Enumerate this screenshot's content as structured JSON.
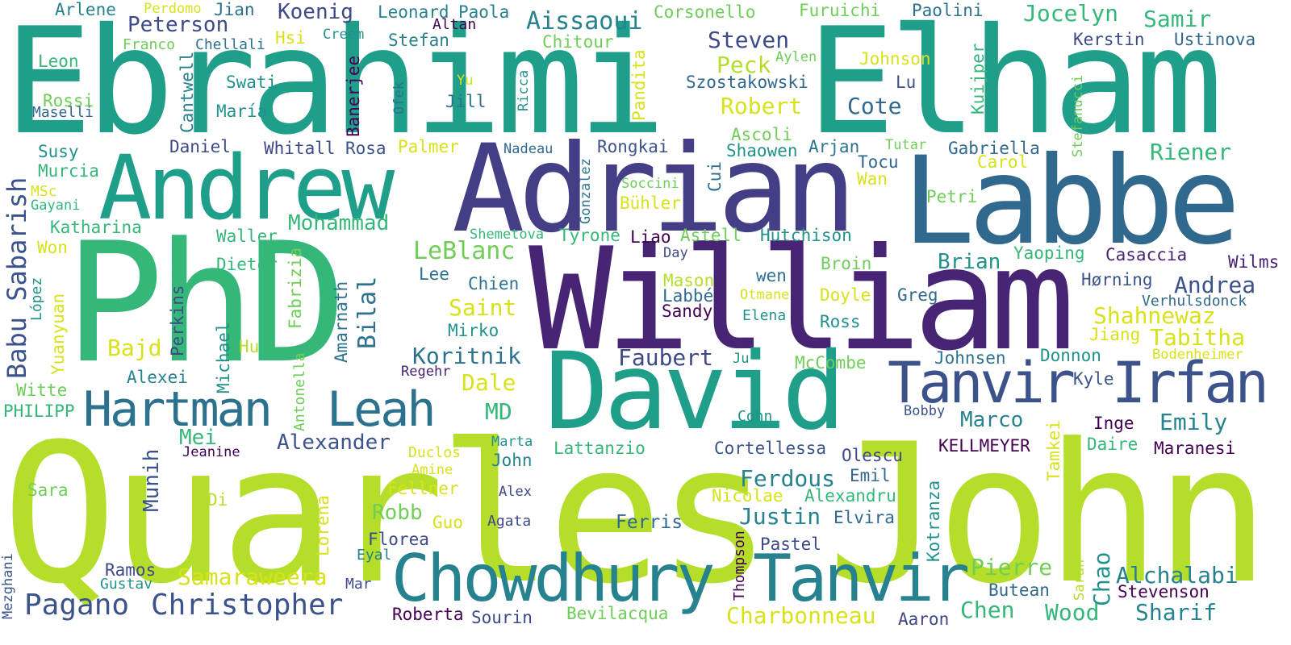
{
  "words": [
    {
      "text": "Quarles",
      "color": "#b5de2b"
    },
    {
      "text": "John",
      "color": "#b5de2b"
    },
    {
      "text": "PhD",
      "color": "#35b779"
    },
    {
      "text": "Ebrahimi",
      "color": "#1f9e89"
    },
    {
      "text": "Elham",
      "color": "#1f9e89"
    },
    {
      "text": "William",
      "color": "#482475"
    },
    {
      "text": "Adrian",
      "color": "#433e85"
    },
    {
      "text": "Labbe",
      "color": "#31688e"
    },
    {
      "text": "Andrew",
      "color": "#1f9e89"
    },
    {
      "text": "David",
      "color": "#1f9e89"
    },
    {
      "text": "Chowdhury",
      "color": "#26828e"
    },
    {
      "text": "Tanvir",
      "color": "#26828e"
    },
    {
      "text": "Tanvir",
      "color": "#3b528b"
    },
    {
      "text": "Irfan",
      "color": "#3b528b"
    },
    {
      "text": "Hartman",
      "color": "#2c728e"
    },
    {
      "text": "Leah",
      "color": "#2c728e"
    },
    {
      "text": "Pagano",
      "color": "#3b528b"
    },
    {
      "text": "Christopher",
      "color": "#3b528b"
    },
    {
      "text": "Babu Sabarish",
      "color": "#3b528b"
    },
    {
      "text": "Arlene",
      "color": "#26828e"
    },
    {
      "text": "Perdomo",
      "color": "#d8e219"
    },
    {
      "text": "Jian",
      "color": "#2c728e"
    },
    {
      "text": "Koenig",
      "color": "#3e4989"
    },
    {
      "text": "Leonard",
      "color": "#26828e"
    },
    {
      "text": "Paola",
      "color": "#26828e"
    },
    {
      "text": "Aissaoui",
      "color": "#26828e"
    },
    {
      "text": "Corsonello",
      "color": "#6ece58"
    },
    {
      "text": "Furuichi",
      "color": "#6ece58"
    },
    {
      "text": "Paolini",
      "color": "#2c728e"
    },
    {
      "text": "Jocelyn",
      "color": "#35b779"
    },
    {
      "text": "Samir",
      "color": "#35b779"
    },
    {
      "text": "Peterson",
      "color": "#3e4989"
    },
    {
      "text": "Altan",
      "color": "#440154"
    },
    {
      "text": "Franco",
      "color": "#6ece58"
    },
    {
      "text": "Chellali",
      "color": "#2c728e"
    },
    {
      "text": "Hsi",
      "color": "#d8e219"
    },
    {
      "text": "Creem",
      "color": "#21918c"
    },
    {
      "text": "Stefan",
      "color": "#26828e"
    },
    {
      "text": "Chitour",
      "color": "#6ece58"
    },
    {
      "text": "Steven",
      "color": "#3e4989"
    },
    {
      "text": "Kerstin",
      "color": "#3e4989"
    },
    {
      "text": "Ustinova",
      "color": "#31688e"
    },
    {
      "text": "Leon",
      "color": "#35b779"
    },
    {
      "text": "Pandita",
      "color": "#d8e219"
    },
    {
      "text": "Peck",
      "color": "#b5de2b"
    },
    {
      "text": "Aylen",
      "color": "#6ece58"
    },
    {
      "text": "Johnson",
      "color": "#d8e219"
    },
    {
      "text": "Swati",
      "color": "#21918c"
    },
    {
      "text": "Yu",
      "color": "#d8e219"
    },
    {
      "text": "Szostakowski",
      "color": "#31688e"
    },
    {
      "text": "Lu",
      "color": "#3b528b"
    },
    {
      "text": "Rossi",
      "color": "#6ece58"
    },
    {
      "text": "Maselli",
      "color": "#31688e"
    },
    {
      "text": "Cantwell",
      "color": "#26828e"
    },
    {
      "text": "María",
      "color": "#21918c"
    },
    {
      "text": "Ofek",
      "color": "#2c728e"
    },
    {
      "text": "Jill",
      "color": "#2c728e"
    },
    {
      "text": "Ricca",
      "color": "#21918c"
    },
    {
      "text": "Banerjee",
      "color": "#440154"
    },
    {
      "text": "Robert",
      "color": "#d8e219"
    },
    {
      "text": "Cote",
      "color": "#31688e"
    },
    {
      "text": "Kuijper",
      "color": "#35b779"
    },
    {
      "text": "Stefanucci",
      "color": "#6ece58"
    },
    {
      "text": "Ascoli",
      "color": "#6ece58"
    },
    {
      "text": "Daniel",
      "color": "#3e4989"
    },
    {
      "text": "Whitall",
      "color": "#3e4989"
    },
    {
      "text": "Rosa",
      "color": "#3b528b"
    },
    {
      "text": "Palmer",
      "color": "#d8e219"
    },
    {
      "text": "Nadeau",
      "color": "#31688e"
    },
    {
      "text": "Rongkai",
      "color": "#3b528b"
    },
    {
      "text": "Shaowen",
      "color": "#21918c"
    },
    {
      "text": "Arjan",
      "color": "#2c728e"
    },
    {
      "text": "Tutar",
      "color": "#6ece58"
    },
    {
      "text": "Gabriella",
      "color": "#31688e"
    },
    {
      "text": "Riener",
      "color": "#35b779"
    },
    {
      "text": "Susy",
      "color": "#21918c"
    },
    {
      "text": "Murcia",
      "color": "#35b779"
    },
    {
      "text": "MSc",
      "color": "#d8e219"
    },
    {
      "text": "Gayani",
      "color": "#35b779"
    },
    {
      "text": "Gonzalez",
      "color": "#2c728e"
    },
    {
      "text": "Cui",
      "color": "#2c728e"
    },
    {
      "text": "Soccini",
      "color": "#6ece58"
    },
    {
      "text": "Bühler",
      "color": "#d8e219"
    },
    {
      "text": "Tocu",
      "color": "#31688e"
    },
    {
      "text": "Wan",
      "color": "#d8e219"
    },
    {
      "text": "Carol",
      "color": "#d8e219"
    },
    {
      "text": "Petri",
      "color": "#6ece58"
    },
    {
      "text": "Katharina",
      "color": "#35b779"
    },
    {
      "text": "Mohammad",
      "color": "#35b779"
    },
    {
      "text": "Won",
      "color": "#d8e219"
    },
    {
      "text": "Waller",
      "color": "#35b779"
    },
    {
      "text": "Fabrizia",
      "color": "#6ece58"
    },
    {
      "text": "Shemetova",
      "color": "#35b779"
    },
    {
      "text": "Tyrone",
      "color": "#35b779"
    },
    {
      "text": "Liao",
      "color": "#440154"
    },
    {
      "text": "Astell",
      "color": "#6ece58"
    },
    {
      "text": "Hutchison",
      "color": "#21918c"
    },
    {
      "text": "LeBlanc",
      "color": "#6ece58"
    },
    {
      "text": "Yaoping",
      "color": "#35b779"
    },
    {
      "text": "Casaccia",
      "color": "#482475"
    },
    {
      "text": "Wilms",
      "color": "#482475"
    },
    {
      "text": "Dieter",
      "color": "#35b779"
    },
    {
      "text": "Day",
      "color": "#3e4989"
    },
    {
      "text": "Broin",
      "color": "#6ece58"
    },
    {
      "text": "Brian",
      "color": "#21918c"
    },
    {
      "text": "López",
      "color": "#21918c"
    },
    {
      "text": "Lee",
      "color": "#2c728e"
    },
    {
      "text": "Perkins",
      "color": "#3e4989"
    },
    {
      "text": "Amarnath",
      "color": "#2c728e"
    },
    {
      "text": "Bilal",
      "color": "#2c728e"
    },
    {
      "text": "Chien",
      "color": "#2c728e"
    },
    {
      "text": "Mason",
      "color": "#b5de2b"
    },
    {
      "text": "wen",
      "color": "#2c728e"
    },
    {
      "text": "Hørning",
      "color": "#3b528b"
    },
    {
      "text": "Andrea",
      "color": "#3b528b"
    },
    {
      "text": "Labbé",
      "color": "#31688e"
    },
    {
      "text": "Otmane",
      "color": "#d8e219"
    },
    {
      "text": "Doyle",
      "color": "#d8e219"
    },
    {
      "text": "Greg",
      "color": "#31688e"
    },
    {
      "text": "Verhulsdonck",
      "color": "#31688e"
    },
    {
      "text": "Yuanyuan",
      "color": "#d8e219"
    },
    {
      "text": "Saint",
      "color": "#d8e219"
    },
    {
      "text": "Sandy",
      "color": "#440154"
    },
    {
      "text": "Elena",
      "color": "#21918c"
    },
    {
      "text": "Shahnewaz",
      "color": "#d8e219"
    },
    {
      "text": "Michael",
      "color": "#21918c"
    },
    {
      "text": "Mirko",
      "color": "#21918c"
    },
    {
      "text": "Ross",
      "color": "#21918c"
    },
    {
      "text": "Jiang",
      "color": "#d8e219"
    },
    {
      "text": "Tabitha",
      "color": "#d8e219"
    },
    {
      "text": "Bajd",
      "color": "#d8e219"
    },
    {
      "text": "Hu",
      "color": "#b5de2b"
    },
    {
      "text": "Antonella",
      "color": "#6ece58"
    },
    {
      "text": "Koritnik",
      "color": "#2c728e"
    },
    {
      "text": "Faubert",
      "color": "#3e4989"
    },
    {
      "text": "Ju",
      "color": "#21918c"
    },
    {
      "text": "McCombe",
      "color": "#6ece58"
    },
    {
      "text": "Johnsen",
      "color": "#2c728e"
    },
    {
      "text": "Donnon",
      "color": "#21918c"
    },
    {
      "text": "Bodenheimer",
      "color": "#d8e219"
    },
    {
      "text": "Alexei",
      "color": "#26828e"
    },
    {
      "text": "Regehr",
      "color": "#482475"
    },
    {
      "text": "Dale",
      "color": "#d8e219"
    },
    {
      "text": "Kyle",
      "color": "#3b528b"
    },
    {
      "text": "Witte",
      "color": "#6ece58"
    },
    {
      "text": "MD",
      "color": "#35b779"
    },
    {
      "text": "PHILIPP",
      "color": "#35b779"
    },
    {
      "text": "Cohn",
      "color": "#21918c"
    },
    {
      "text": "Bobby",
      "color": "#3b528b"
    },
    {
      "text": "Marco",
      "color": "#26828e"
    },
    {
      "text": "Inge",
      "color": "#440154"
    },
    {
      "text": "Emily",
      "color": "#26828e"
    },
    {
      "text": "Mei",
      "color": "#35b779"
    },
    {
      "text": "Tamkei",
      "color": "#d8e219"
    },
    {
      "text": "Munih",
      "color": "#3b528b"
    },
    {
      "text": "Alexander",
      "color": "#3b528b"
    },
    {
      "text": "Marta",
      "color": "#21918c"
    },
    {
      "text": "Lattanzio",
      "color": "#35b779"
    },
    {
      "text": "Cortellessa",
      "color": "#3b528b"
    },
    {
      "text": "Jeanine",
      "color": "#440154"
    },
    {
      "text": "Duclos",
      "color": "#d8e219"
    },
    {
      "text": "Olescu",
      "color": "#3e4989"
    },
    {
      "text": "KELLMEYER",
      "color": "#440154"
    },
    {
      "text": "Daire",
      "color": "#35b779"
    },
    {
      "text": "Maranesi",
      "color": "#440154"
    },
    {
      "text": "John",
      "color": "#26828e"
    },
    {
      "text": "Amine",
      "color": "#d8e219"
    },
    {
      "text": "Ferdous",
      "color": "#26828e"
    },
    {
      "text": "Emil",
      "color": "#31688e"
    },
    {
      "text": "Sara",
      "color": "#6ece58"
    },
    {
      "text": "Fellner",
      "color": "#d8e219"
    },
    {
      "text": "Di",
      "color": "#b5de2b"
    },
    {
      "text": "Alex",
      "color": "#3e4989"
    },
    {
      "text": "Nicolae",
      "color": "#d8e219"
    },
    {
      "text": "Alexandru",
      "color": "#35b779"
    },
    {
      "text": "Kotranza",
      "color": "#21918c"
    },
    {
      "text": "Lorena",
      "color": "#d8e219"
    },
    {
      "text": "Robb",
      "color": "#6ece58"
    },
    {
      "text": "Justin",
      "color": "#26828e"
    },
    {
      "text": "Elvira",
      "color": "#31688e"
    },
    {
      "text": "Guo",
      "color": "#d8e219"
    },
    {
      "text": "Agata",
      "color": "#3e4989"
    },
    {
      "text": "Ferris",
      "color": "#31688e"
    },
    {
      "text": "Florea",
      "color": "#3e4989"
    },
    {
      "text": "Thompson",
      "color": "#440154"
    },
    {
      "text": "Pastel",
      "color": "#3e4989"
    },
    {
      "text": "Eyal",
      "color": "#26828e"
    },
    {
      "text": "Mezghani",
      "color": "#3b528b"
    },
    {
      "text": "Pierre",
      "color": "#6ece58"
    },
    {
      "text": "Sarah",
      "color": "#b5de2b"
    },
    {
      "text": "Chao",
      "color": "#21918c"
    },
    {
      "text": "Alchalabi",
      "color": "#26828e"
    },
    {
      "text": "Ramos",
      "color": "#3e4989"
    },
    {
      "text": "Gustav",
      "color": "#21918c"
    },
    {
      "text": "Samaraweera",
      "color": "#d8e219"
    },
    {
      "text": "Mar",
      "color": "#3e4989"
    },
    {
      "text": "Butean",
      "color": "#31688e"
    },
    {
      "text": "Stevenson",
      "color": "#440154"
    },
    {
      "text": "Chen",
      "color": "#35b779"
    },
    {
      "text": "Wood",
      "color": "#35b779"
    },
    {
      "text": "Sharif",
      "color": "#26828e"
    },
    {
      "text": "Roberta",
      "color": "#440154"
    },
    {
      "text": "Sourin",
      "color": "#3e4989"
    },
    {
      "text": "Bevilacqua",
      "color": "#6ece58"
    },
    {
      "text": "Charbonneau",
      "color": "#d8e219"
    },
    {
      "text": "Aaron",
      "color": "#3e4989"
    }
  ]
}
